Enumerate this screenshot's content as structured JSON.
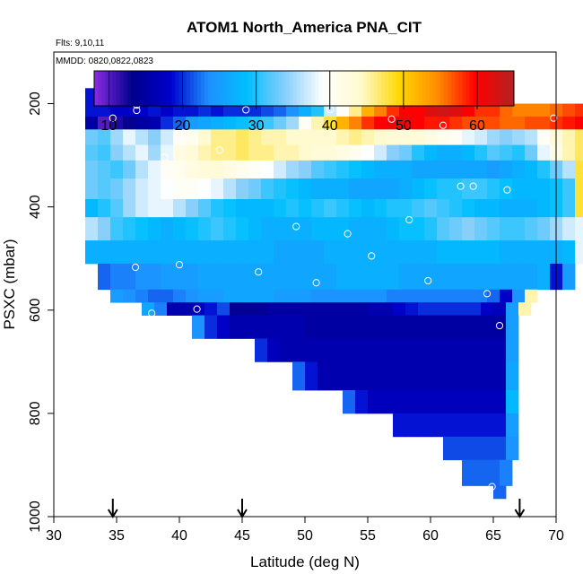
{
  "chart_data": {
    "type": "heatmap",
    "title": "ATOM1 North_America PNA_CIT",
    "info_line_1": "Flts: 9,10,11",
    "info_line_2": "MMDD: 0820,0822,0823",
    "xlabel": "Latitude (deg N)",
    "ylabel": "PSXC (mbar)",
    "xlim": [
      30,
      70
    ],
    "ylim": [
      1000,
      100
    ],
    "x_ticks": [
      "30",
      "35",
      "40",
      "45",
      "50",
      "55",
      "60",
      "65",
      "70"
    ],
    "y_ticks": [
      "200",
      "400",
      "600",
      "800",
      "1000"
    ],
    "colorbar": {
      "min": 8,
      "max": 65,
      "ticks": [
        "10",
        "20",
        "30",
        "40",
        "50",
        "60"
      ],
      "colors": [
        "#8a2be2",
        "#00008b",
        "#0000cd",
        "#1e90ff",
        "#00bfff",
        "#87cefa",
        "#ffffff",
        "#fffacd",
        "#ffd700",
        "#ff8c00",
        "#ff0000",
        "#b22222"
      ]
    },
    "column_width_deg": 1.0,
    "rows": [
      {
        "p0": 170,
        "p1": 200,
        "lat_start": 32.5,
        "values": [
          19,
          18,
          18,
          18,
          18,
          18,
          18,
          18,
          18,
          18,
          18,
          18,
          18,
          18,
          20,
          19,
          19,
          27,
          30,
          38,
          40,
          46,
          48,
          41
        ]
      },
      {
        "p0": 200,
        "p1": 225,
        "lat_start": 32.5,
        "values": [
          19,
          19,
          18,
          18,
          18,
          19,
          18,
          19,
          19,
          20,
          19,
          20,
          20,
          20,
          21,
          22,
          24,
          27,
          30,
          37,
          40,
          46,
          52,
          55,
          58,
          60,
          60,
          62,
          63,
          62,
          60,
          58,
          58,
          56,
          55,
          55,
          55,
          56,
          57,
          58
        ]
      },
      {
        "p0": 225,
        "p1": 250,
        "lat_start": 32.5,
        "values": [
          15,
          10,
          12,
          13,
          15,
          16,
          20,
          22,
          25,
          26,
          27,
          28,
          29,
          30,
          31,
          33,
          35,
          40,
          45,
          48,
          52,
          55,
          58,
          60,
          61,
          61,
          60,
          59,
          59,
          58,
          57,
          57,
          57,
          56,
          56,
          57,
          57,
          58,
          59,
          60
        ]
      },
      {
        "p0": 250,
        "p1": 280,
        "lat_start": 32.5,
        "values": [
          33,
          32,
          35,
          38,
          36,
          34,
          37,
          40,
          41,
          44,
          46,
          46,
          47,
          46,
          45,
          45,
          44,
          44,
          44,
          44,
          45,
          46,
          45,
          44,
          43,
          43,
          43,
          42,
          41,
          40,
          38,
          37,
          35,
          34,
          35,
          36,
          40,
          43,
          45,
          47
        ]
      },
      {
        "p0": 280,
        "p1": 310,
        "lat_start": 32.5,
        "values": [
          32,
          31,
          34,
          36,
          38,
          35,
          38,
          42,
          43,
          45,
          46,
          46,
          47,
          46,
          46,
          45,
          45,
          44,
          43,
          43,
          42,
          41,
          39,
          37,
          34,
          33,
          30,
          28,
          27,
          27,
          28,
          30,
          32,
          31,
          30,
          33,
          38,
          42,
          45,
          47
        ]
      },
      {
        "p0": 310,
        "p1": 345,
        "lat_start": 32.5,
        "values": [
          33,
          32,
          31,
          33,
          36,
          38,
          40,
          41,
          42,
          43,
          43,
          42,
          41,
          40,
          39,
          37,
          35,
          34,
          32,
          31,
          30,
          29,
          28,
          27,
          27,
          27,
          26,
          26,
          26,
          26,
          26,
          26,
          25,
          26,
          27,
          28,
          30,
          33,
          36,
          48
        ]
      },
      {
        "p0": 345,
        "p1": 385,
        "lat_start": 32.5,
        "values": [
          33,
          32,
          33,
          35,
          37,
          38,
          39,
          40,
          40,
          39,
          38,
          36,
          34,
          33,
          31,
          30,
          29,
          28,
          27,
          27,
          27,
          26,
          26,
          26,
          26,
          27,
          28,
          29,
          30,
          30,
          31,
          31,
          30,
          29,
          28,
          28,
          28,
          29,
          31,
          48
        ]
      },
      {
        "p0": 385,
        "p1": 420,
        "lat_start": 32.5,
        "values": [
          28,
          30,
          32,
          35,
          37,
          38,
          38,
          36,
          34,
          32,
          30,
          29,
          28,
          28,
          28,
          29,
          30,
          29,
          30,
          31,
          30,
          29,
          28,
          29,
          30,
          30,
          31,
          32,
          31,
          30,
          29,
          28,
          28,
          27,
          27,
          27,
          28,
          29,
          31,
          48
        ]
      },
      {
        "p0": 420,
        "p1": 465,
        "lat_start": 31.5,
        "values": [
          39,
          36,
          34,
          31,
          30,
          29,
          28,
          27,
          28,
          29,
          30,
          31,
          30,
          29,
          28,
          27,
          27,
          27,
          27,
          28,
          28,
          28,
          27,
          27,
          27,
          28,
          29,
          29,
          30,
          32,
          33,
          34,
          33,
          32,
          31,
          31,
          32,
          33,
          35,
          37,
          38
        ]
      },
      {
        "p0": 465,
        "p1": 510,
        "lat_start": 32.5,
        "values": [
          27,
          27,
          27,
          27,
          27,
          27,
          27,
          27,
          27,
          27,
          27,
          27,
          27,
          27,
          27,
          26,
          26,
          26,
          26,
          27,
          27,
          27,
          27,
          27,
          27,
          27,
          27,
          27,
          28,
          28,
          28,
          28,
          28,
          27,
          27,
          27,
          27,
          27,
          28,
          38
        ]
      },
      {
        "p0": 510,
        "p1": 560,
        "lat_start": 33.5,
        "values": [
          22,
          23,
          23,
          24,
          24,
          25,
          25,
          25,
          26,
          26,
          26,
          26,
          26,
          26,
          26,
          26,
          26,
          26,
          26,
          27,
          27,
          27,
          27,
          27,
          26,
          26,
          26,
          26,
          26,
          26,
          26,
          26,
          26,
          26,
          26,
          27,
          19,
          25
        ]
      },
      {
        "p0": 560,
        "p1": 585,
        "lat_start": 34.5,
        "values": [
          25,
          24,
          23,
          22,
          22,
          23,
          24,
          25,
          25,
          26,
          26,
          26,
          26,
          25,
          25,
          25,
          24,
          24,
          24,
          24,
          24,
          24,
          23,
          23,
          23,
          23,
          23,
          23,
          23,
          23,
          22,
          18,
          24,
          45
        ]
      },
      {
        "p0": 585,
        "p1": 610,
        "lat_start": 37.0,
        "values": [
          26,
          23,
          16,
          16,
          17,
          19,
          21,
          14,
          14,
          14,
          15,
          15,
          15,
          15,
          15,
          15,
          15,
          15,
          16,
          16,
          18,
          19,
          20,
          20,
          20,
          20,
          20,
          18,
          17,
          25,
          45
        ]
      },
      {
        "p0": 610,
        "p1": 655,
        "lat_start": 41.0,
        "values": [
          24,
          20,
          18,
          16,
          16,
          16,
          16,
          16,
          16,
          15,
          15,
          15,
          15,
          15,
          15,
          15,
          15,
          15,
          15,
          15,
          15,
          15,
          15,
          15,
          15,
          25
        ]
      },
      {
        "p0": 655,
        "p1": 700,
        "lat_start": 46.0,
        "values": [
          20,
          17,
          16,
          16,
          16,
          16,
          16,
          16,
          16,
          16,
          16,
          16,
          16,
          16,
          16,
          16,
          16,
          16,
          16,
          16,
          25
        ]
      },
      {
        "p0": 700,
        "p1": 755,
        "lat_start": 49.0,
        "values": [
          22,
          19,
          16,
          16,
          16,
          16,
          16,
          16,
          16,
          16,
          16,
          16,
          16,
          16,
          16,
          16,
          16,
          26
        ]
      },
      {
        "p0": 755,
        "p1": 800,
        "lat_start": 53.0,
        "values": [
          22,
          19,
          17,
          17,
          17,
          17,
          17,
          17,
          17,
          17,
          17,
          17,
          17,
          28
        ]
      },
      {
        "p0": 800,
        "p1": 845,
        "lat_start": 57.0,
        "values": [
          19,
          19,
          19,
          19,
          19,
          19,
          19,
          19,
          19,
          25
        ]
      },
      {
        "p0": 845,
        "p1": 890,
        "lat_start": 61.0,
        "values": [
          21,
          21,
          21,
          21,
          21,
          24
        ]
      },
      {
        "p0": 890,
        "p1": 940,
        "lat_start": 62.5,
        "values": [
          22,
          22,
          22,
          23
        ]
      },
      {
        "p0": 940,
        "p1": 965,
        "lat_start": 65.0,
        "values": [
          22
        ]
      }
    ],
    "points": [
      {
        "lat": 35.7,
        "p": 190
      },
      {
        "lat": 36.3,
        "p": 193
      },
      {
        "lat": 36.6,
        "p": 203
      },
      {
        "lat": 36.6,
        "p": 213
      },
      {
        "lat": 34.7,
        "p": 228
      },
      {
        "lat": 45.3,
        "p": 212
      },
      {
        "lat": 52.0,
        "p": 211
      },
      {
        "lat": 56.9,
        "p": 230
      },
      {
        "lat": 61.0,
        "p": 242
      },
      {
        "lat": 69.8,
        "p": 228
      },
      {
        "lat": 43.2,
        "p": 290
      },
      {
        "lat": 38.8,
        "p": 304
      },
      {
        "lat": 62.4,
        "p": 360
      },
      {
        "lat": 63.4,
        "p": 360
      },
      {
        "lat": 66.1,
        "p": 367
      },
      {
        "lat": 31.8,
        "p": 440
      },
      {
        "lat": 49.3,
        "p": 438
      },
      {
        "lat": 53.4,
        "p": 452
      },
      {
        "lat": 58.3,
        "p": 425
      },
      {
        "lat": 55.3,
        "p": 495
      },
      {
        "lat": 36.5,
        "p": 517
      },
      {
        "lat": 40.0,
        "p": 512
      },
      {
        "lat": 46.3,
        "p": 526
      },
      {
        "lat": 50.9,
        "p": 547
      },
      {
        "lat": 59.8,
        "p": 543
      },
      {
        "lat": 64.5,
        "p": 568
      },
      {
        "lat": 37.8,
        "p": 606
      },
      {
        "lat": 41.4,
        "p": 598
      },
      {
        "lat": 65.5,
        "p": 630
      },
      {
        "lat": 64.9,
        "p": 942
      }
    ],
    "arrows_lat": [
      34.7,
      45.0,
      67.1
    ]
  }
}
